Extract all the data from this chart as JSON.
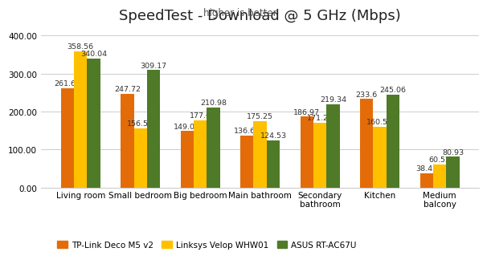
{
  "title": "SpeedTest - Download @ 5 GHz (Mbps)",
  "subtitle": "higher is better",
  "categories": [
    "Living room",
    "Small bedroom",
    "Big bedroom",
    "Main bathroom",
    "Secondary\nbathroom",
    "Kitchen",
    "Medium\nbalcony"
  ],
  "series": [
    {
      "name": "TP-Link Deco M5 v2",
      "color": "#E36C09",
      "values": [
        261.64,
        247.72,
        149.05,
        136.67,
        186.97,
        233.6,
        38.42
      ]
    },
    {
      "name": "Linksys Velop WHW01",
      "color": "#FFC000",
      "values": [
        358.56,
        156.56,
        177.6,
        175.25,
        171.25,
        160.51,
        60.52
      ]
    },
    {
      "name": "ASUS RT-AC67U",
      "color": "#4F7A28",
      "values": [
        340.04,
        309.17,
        210.98,
        124.53,
        219.34,
        245.06,
        80.93
      ]
    }
  ],
  "ylim": [
    0,
    430
  ],
  "yticks": [
    0,
    100,
    200,
    300,
    400
  ],
  "ytick_labels": [
    "0.00",
    "100.00",
    "200.00",
    "300.00",
    "400.00"
  ],
  "background_color": "#FFFFFF",
  "grid_color": "#CCCCCC",
  "bar_width": 0.22,
  "title_fontsize": 13,
  "subtitle_fontsize": 8.5,
  "label_fontsize": 6.8,
  "tick_fontsize": 7.5,
  "legend_fontsize": 7.5
}
